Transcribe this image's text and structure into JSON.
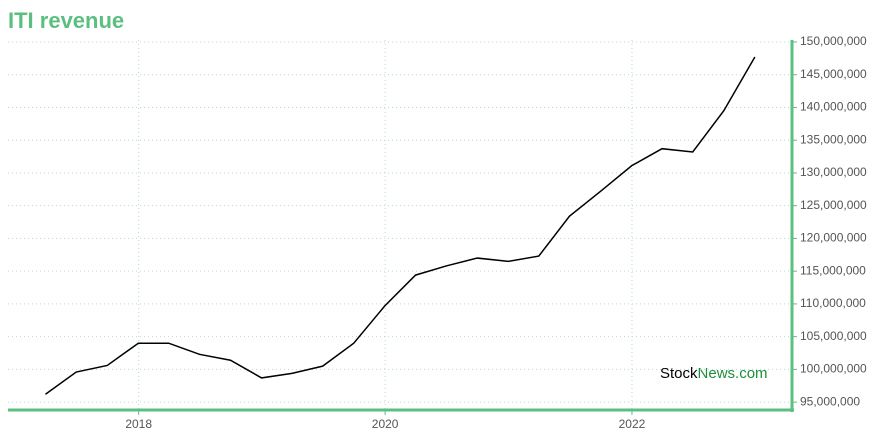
{
  "chart_data": {
    "type": "line",
    "title": "ITI revenue",
    "x": [
      "2017-03-31",
      "2017-06-30",
      "2017-09-30",
      "2017-12-31",
      "2018-03-31",
      "2018-06-30",
      "2018-09-30",
      "2018-12-31",
      "2019-03-31",
      "2019-06-30",
      "2019-09-30",
      "2019-12-31",
      "2020-03-31",
      "2020-06-30",
      "2020-09-30",
      "2020-12-31",
      "2021-03-31",
      "2021-06-30",
      "2021-09-30",
      "2021-12-31",
      "2022-03-31",
      "2022-06-30",
      "2022-09-30",
      "2022-12-31"
    ],
    "series": [
      {
        "name": "ITI revenue",
        "color": "#000000",
        "values": [
          96200000,
          99600000,
          100600000,
          104000000,
          104000000,
          102300000,
          101400000,
          98700000,
          99400000,
          100500000,
          104000000,
          109700000,
          114400000,
          115800000,
          117000000,
          116500000,
          117300000,
          123400000,
          127200000,
          131100000,
          133700000,
          133200000,
          139500000,
          147700000
        ]
      }
    ],
    "xlim": [
      "2016-12-10",
      "2023-04-20"
    ],
    "xticks": [
      {
        "value": "2018-01-01",
        "label": "2018"
      },
      {
        "value": "2020-01-01",
        "label": "2020"
      },
      {
        "value": "2022-01-01",
        "label": "2022"
      }
    ],
    "ylim": [
      93800000,
      150300000
    ],
    "yticks": [
      {
        "value": 95000000,
        "label": "95,000,000"
      },
      {
        "value": 100000000,
        "label": "100,000,000"
      },
      {
        "value": 105000000,
        "label": "105,000,000"
      },
      {
        "value": 110000000,
        "label": "110,000,000"
      },
      {
        "value": 115000000,
        "label": "115,000,000"
      },
      {
        "value": 120000000,
        "label": "120,000,000"
      },
      {
        "value": 125000000,
        "label": "125,000,000"
      },
      {
        "value": 130000000,
        "label": "130,000,000"
      },
      {
        "value": 135000000,
        "label": "135,000,000"
      },
      {
        "value": 140000000,
        "label": "140,000,000"
      },
      {
        "value": 145000000,
        "label": "145,000,000"
      },
      {
        "value": 150000000,
        "label": "150,000,000"
      }
    ],
    "grid": true,
    "axis_color": "#5cbf82",
    "grid_color": "#b9dcc6",
    "annotations": [
      "Stock",
      "News.com"
    ]
  }
}
